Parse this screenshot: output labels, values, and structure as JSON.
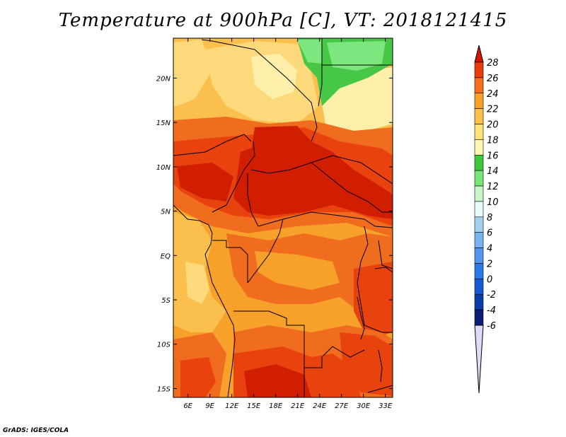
{
  "title": "Temperature at 900hPa [C], VT: 2018121415",
  "credit": "GrADS: IGES/COLA",
  "map": {
    "lon_range": [
      4,
      34
    ],
    "lat_range": [
      -16,
      24.5
    ],
    "x_ticks": [
      {
        "label": "6E",
        "lon": 6
      },
      {
        "label": "9E",
        "lon": 9
      },
      {
        "label": "12E",
        "lon": 12
      },
      {
        "label": "15E",
        "lon": 15
      },
      {
        "label": "18E",
        "lon": 18
      },
      {
        "label": "21E",
        "lon": 21
      },
      {
        "label": "24E",
        "lon": 24
      },
      {
        "label": "27E",
        "lon": 27
      },
      {
        "label": "30E",
        "lon": 30
      },
      {
        "label": "33E",
        "lon": 33
      }
    ],
    "y_ticks": [
      {
        "label": "20N",
        "lat": 20
      },
      {
        "label": "15N",
        "lat": 15
      },
      {
        "label": "10N",
        "lat": 10
      },
      {
        "label": "5N",
        "lat": 5
      },
      {
        "label": "EQ",
        "lat": 0
      },
      {
        "label": "5S",
        "lat": -5
      },
      {
        "label": "10S",
        "lat": -10
      },
      {
        "label": "15S",
        "lat": -15
      }
    ]
  },
  "colorbar": {
    "levels": [
      {
        "value": "28",
        "color": "#c81e00"
      },
      {
        "value": "26",
        "color": "#e83c0a"
      },
      {
        "value": "24",
        "color": "#f46e1e"
      },
      {
        "value": "22",
        "color": "#f8a028"
      },
      {
        "value": "20",
        "color": "#fbc04a"
      },
      {
        "value": "18",
        "color": "#fde27a"
      },
      {
        "value": "16",
        "color": "#fff6b4"
      },
      {
        "value": "14",
        "color": "#3cc83c"
      },
      {
        "value": "12",
        "color": "#78e678"
      },
      {
        "value": "10",
        "color": "#c8f5c8"
      },
      {
        "value": "8",
        "color": "#e6fafa"
      },
      {
        "value": "6",
        "color": "#a0d2f0"
      },
      {
        "value": "4",
        "color": "#78b4f0"
      },
      {
        "value": "2",
        "color": "#5096f0"
      },
      {
        "value": "0",
        "color": "#2878e6"
      },
      {
        "value": "-2",
        "color": "#145ad2"
      },
      {
        "value": "-4",
        "color": "#0a3caa"
      },
      {
        "value": "-6",
        "color": "#0a1e78"
      }
    ],
    "top_color": "#d21400",
    "bottom_color": "#dcdcf8"
  },
  "field_colors": {
    "c28": "#d21e00",
    "c26": "#e8420e",
    "c24": "#f06c1e",
    "c22": "#f7a02a",
    "c20": "#fbbf4e",
    "c18": "#fcd97a",
    "c16": "#fef0aa",
    "c14": "#46c846",
    "c12": "#7ee67e"
  }
}
